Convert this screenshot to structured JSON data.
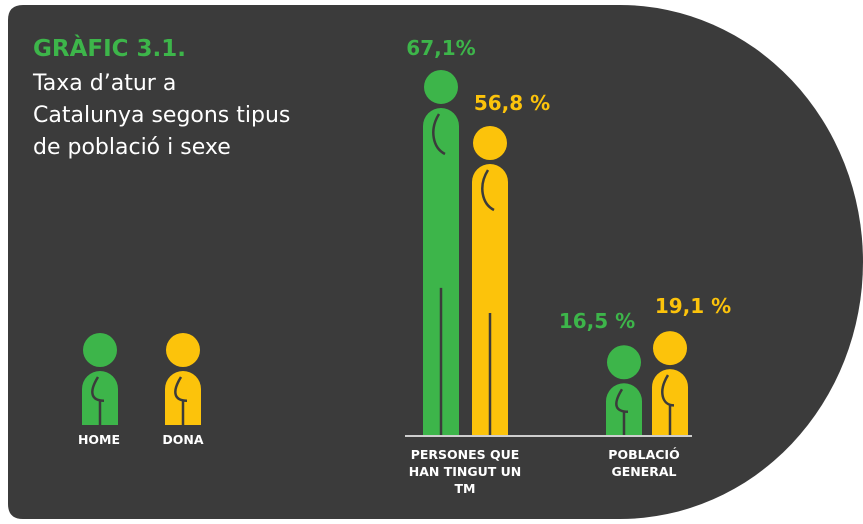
{
  "chart_data": {
    "type": "pictogram",
    "title": "GRÀFIC 3.1.",
    "subtitle": "Taxa d’atur a Catalunya segons tipus de població i sexe",
    "categories": [
      "PERSONES QUE HAN TINGUT UN TM",
      "POBLACIÓ GENERAL"
    ],
    "series": [
      {
        "name": "HOME",
        "color": "#3db54a",
        "values": [
          67.1,
          16.5
        ],
        "value_labels": [
          "67,1%",
          "16,5 %"
        ]
      },
      {
        "name": "DONA",
        "color": "#fcc30b",
        "values": [
          56.8,
          19.1
        ],
        "value_labels": [
          "56,8 %",
          "19,1 %"
        ]
      }
    ]
  }
}
